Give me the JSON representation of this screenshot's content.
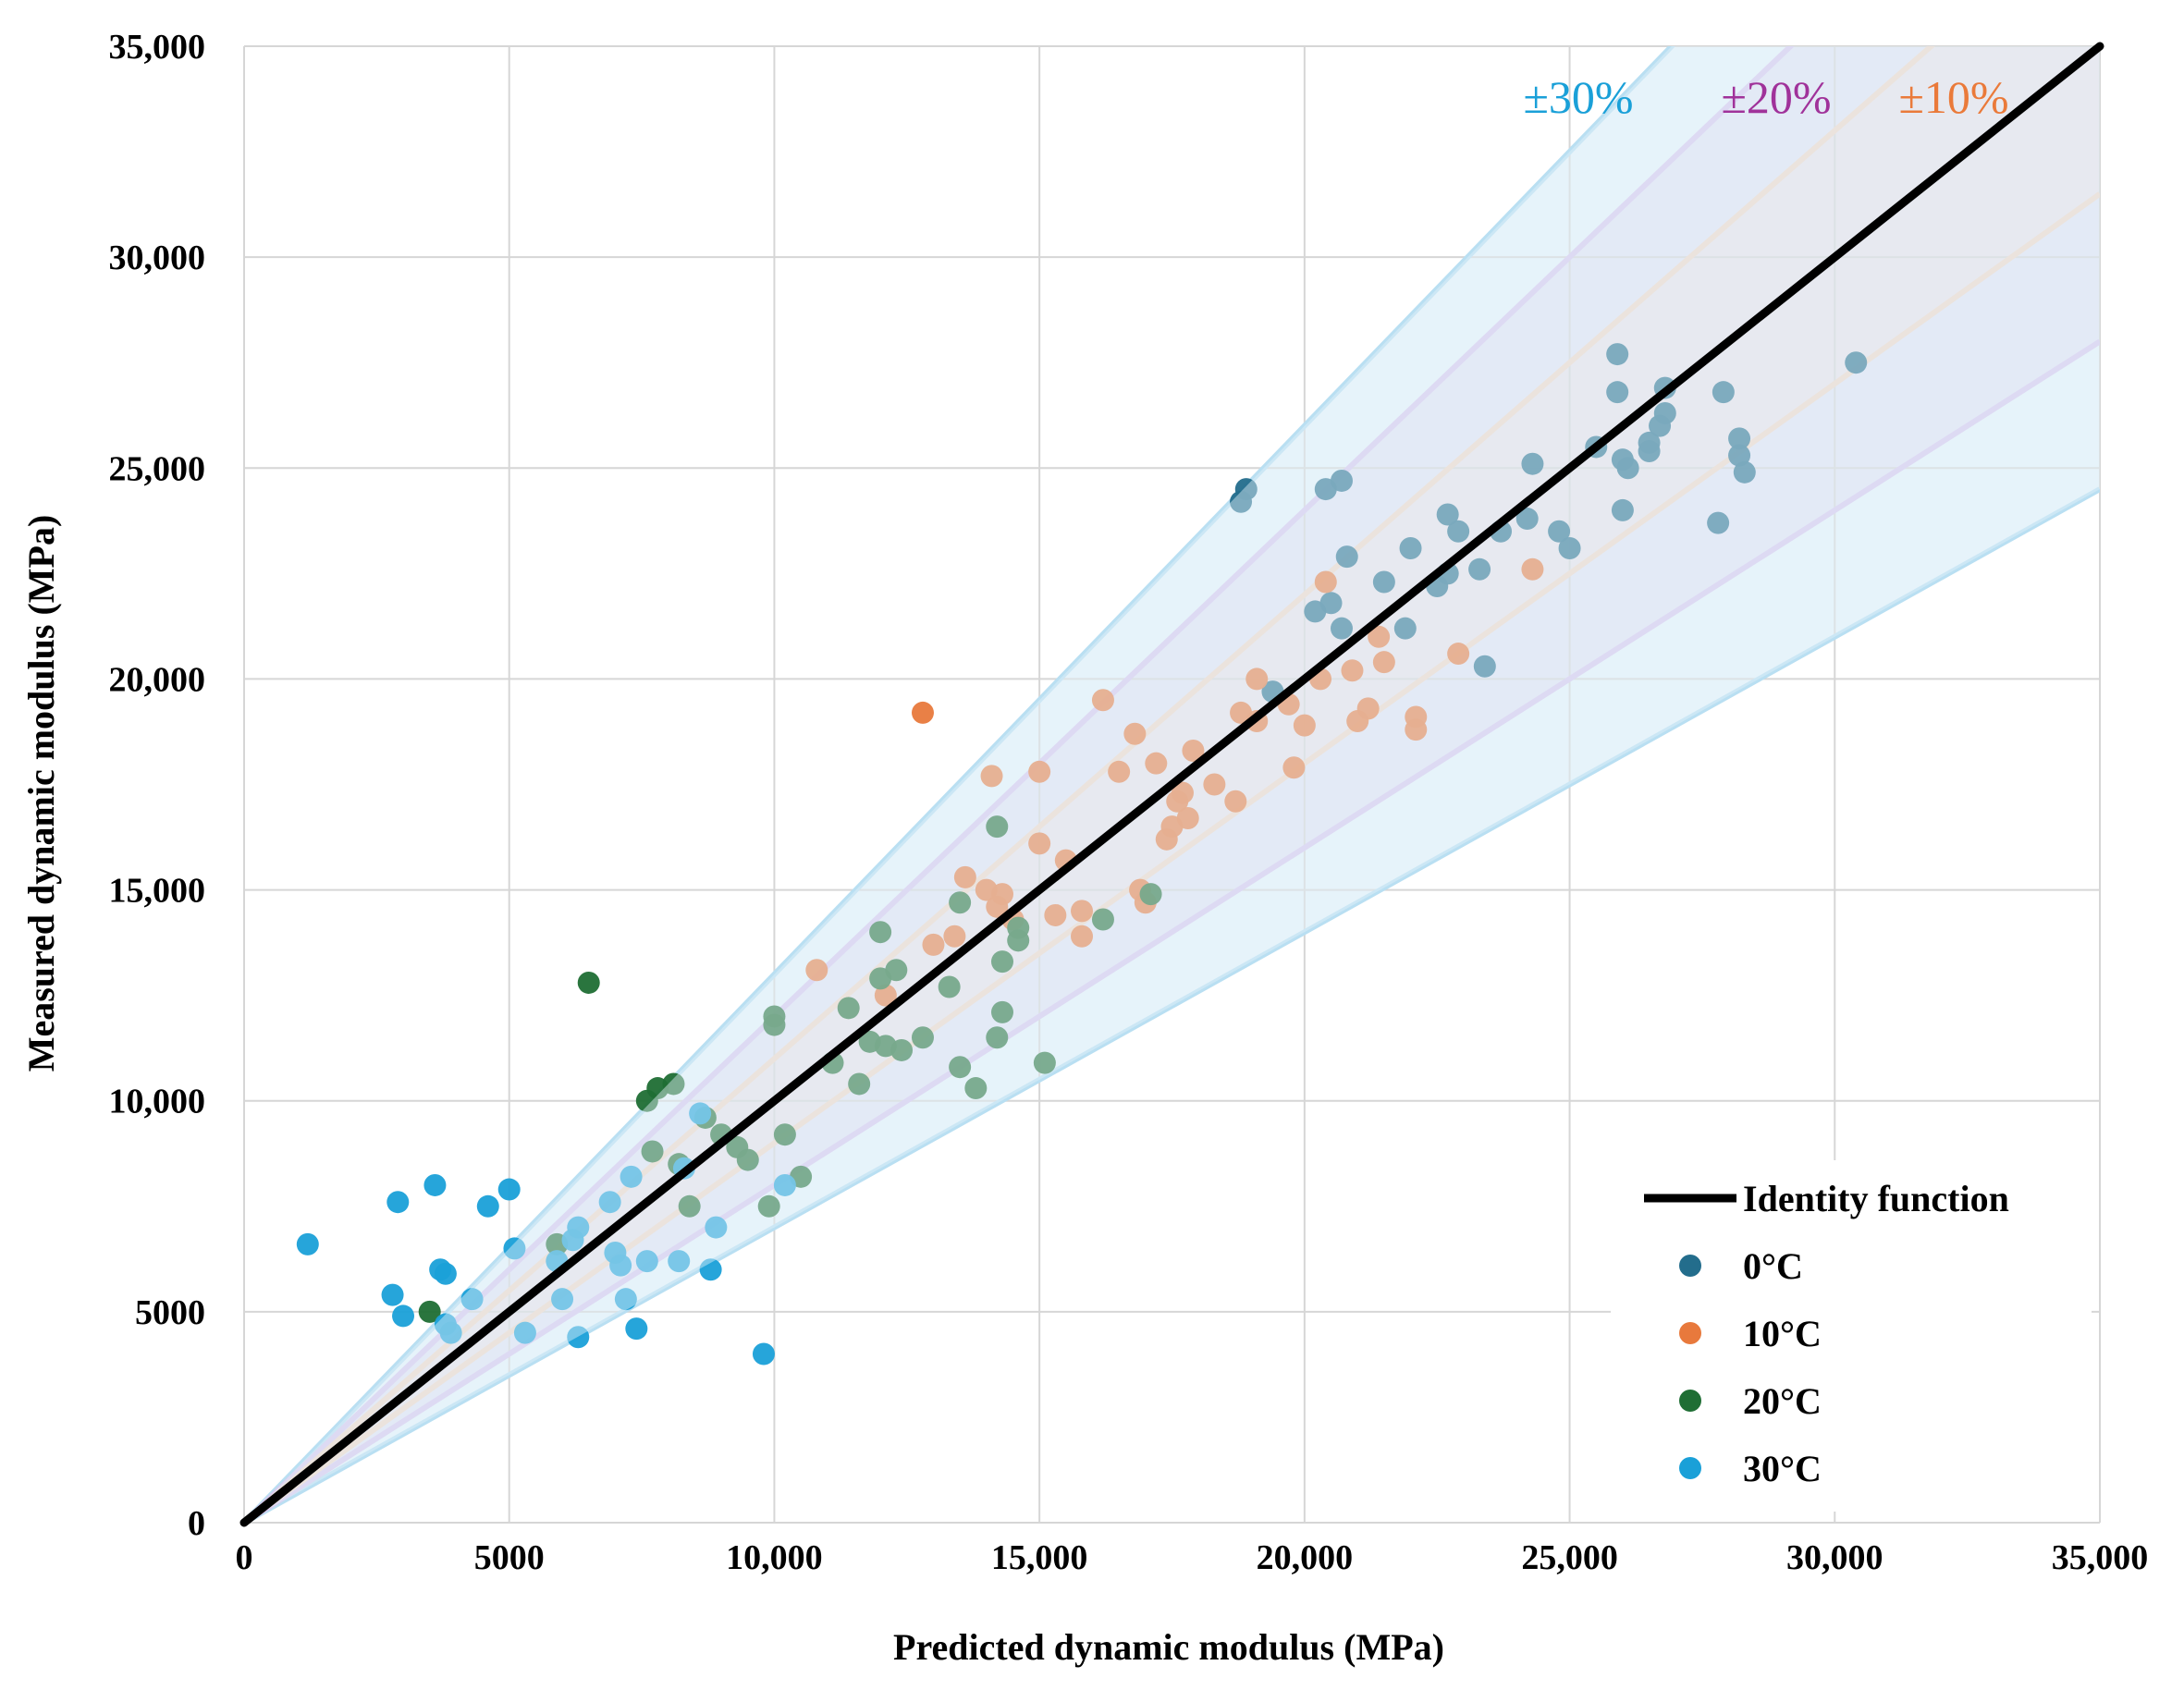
{
  "chart_data": {
    "type": "scatter",
    "xlabel": "Predicted dynamic modulus (MPa)",
    "ylabel": "Measured dynamic modulus (MPa)",
    "xlim": [
      0,
      35000
    ],
    "ylim": [
      0,
      35000
    ],
    "grid": true,
    "x_ticks": [
      {
        "value": 0,
        "label": "0"
      },
      {
        "value": 5000,
        "label": "5000"
      },
      {
        "value": 10000,
        "label": "10,000"
      },
      {
        "value": 15000,
        "label": "15,000"
      },
      {
        "value": 20000,
        "label": "20,000"
      },
      {
        "value": 25000,
        "label": "25,000"
      },
      {
        "value": 30000,
        "label": "30,000"
      },
      {
        "value": 35000,
        "label": "35,000"
      }
    ],
    "y_ticks": [
      {
        "value": 0,
        "label": "0"
      },
      {
        "value": 5000,
        "label": "5000"
      },
      {
        "value": 10000,
        "label": "10,000"
      },
      {
        "value": 15000,
        "label": "15,000"
      },
      {
        "value": 20000,
        "label": "20,000"
      },
      {
        "value": 25000,
        "label": "25,000"
      },
      {
        "value": 30000,
        "label": "30,000"
      },
      {
        "value": 35000,
        "label": "35,000"
      }
    ],
    "bands": [
      {
        "label": "±30%",
        "pct": 30,
        "line_color": "#b9dff2",
        "fill_color": "#d5edf8",
        "text_color": "#1aa0d8"
      },
      {
        "label": "±20%",
        "pct": 20,
        "line_color": "#d8c6ee",
        "fill_color": "#ddd4f0",
        "text_color": "#a0329a"
      },
      {
        "label": "±10%",
        "pct": 10,
        "line_color": "#f1d8c6",
        "fill_color": "#efe2de",
        "text_color": "#ea7a3a"
      }
    ],
    "identity": {
      "label": "Identity function",
      "color": "#000000"
    },
    "legend_position": "bottom-right",
    "series": [
      {
        "name": "0°C",
        "color": "#236d8c",
        "points": [
          [
            18800,
            24200
          ],
          [
            18900,
            24500
          ],
          [
            20400,
            24500
          ],
          [
            20700,
            24700
          ],
          [
            20800,
            22900
          ],
          [
            19400,
            19700
          ],
          [
            20200,
            21600
          ],
          [
            20500,
            21800
          ],
          [
            20700,
            21200
          ],
          [
            21500,
            22300
          ],
          [
            21900,
            21200
          ],
          [
            22000,
            23100
          ],
          [
            22500,
            22200
          ],
          [
            22700,
            23900
          ],
          [
            22900,
            23500
          ],
          [
            23300,
            22600
          ],
          [
            23400,
            20300
          ],
          [
            23700,
            23500
          ],
          [
            24200,
            23800
          ],
          [
            24300,
            25100
          ],
          [
            24800,
            23500
          ],
          [
            25000,
            23100
          ],
          [
            25500,
            25500
          ],
          [
            25900,
            27700
          ],
          [
            25900,
            26800
          ],
          [
            26000,
            25200
          ],
          [
            26000,
            24000
          ],
          [
            26100,
            25000
          ],
          [
            26500,
            25600
          ],
          [
            26500,
            25400
          ],
          [
            26700,
            26000
          ],
          [
            26800,
            26900
          ],
          [
            26800,
            26300
          ],
          [
            27800,
            23700
          ],
          [
            27900,
            26800
          ],
          [
            28200,
            25700
          ],
          [
            28200,
            25300
          ],
          [
            28300,
            24900
          ],
          [
            30400,
            27500
          ],
          [
            22700,
            22500
          ]
        ]
      },
      {
        "name": "10°C",
        "color": "#e8793c",
        "points": [
          [
            12800,
            19200
          ],
          [
            10800,
            13100
          ],
          [
            12100,
            12500
          ],
          [
            13000,
            13700
          ],
          [
            13400,
            13900
          ],
          [
            13600,
            15300
          ],
          [
            14000,
            15000
          ],
          [
            14100,
            17700
          ],
          [
            14200,
            14600
          ],
          [
            14300,
            14900
          ],
          [
            14500,
            14300
          ],
          [
            15000,
            17800
          ],
          [
            15000,
            16100
          ],
          [
            15300,
            14400
          ],
          [
            15500,
            15700
          ],
          [
            15800,
            14500
          ],
          [
            15800,
            13900
          ],
          [
            16200,
            19500
          ],
          [
            16500,
            17800
          ],
          [
            16800,
            18700
          ],
          [
            16900,
            15000
          ],
          [
            17000,
            14700
          ],
          [
            17200,
            18000
          ],
          [
            17400,
            16200
          ],
          [
            17500,
            16500
          ],
          [
            17600,
            17100
          ],
          [
            17700,
            17300
          ],
          [
            17800,
            16700
          ],
          [
            17900,
            18300
          ],
          [
            18300,
            17500
          ],
          [
            18700,
            17100
          ],
          [
            18800,
            19200
          ],
          [
            19100,
            20000
          ],
          [
            19100,
            19000
          ],
          [
            19700,
            19400
          ],
          [
            19800,
            17900
          ],
          [
            20000,
            18900
          ],
          [
            20300,
            20000
          ],
          [
            20400,
            22300
          ],
          [
            20900,
            20200
          ],
          [
            21000,
            19000
          ],
          [
            21200,
            19300
          ],
          [
            21400,
            21000
          ],
          [
            21500,
            20400
          ],
          [
            22100,
            19100
          ],
          [
            22100,
            18800
          ],
          [
            22900,
            20600
          ],
          [
            24300,
            22600
          ]
        ]
      },
      {
        "name": "20°C",
        "color": "#1f6e34",
        "points": [
          [
            3500,
            5000
          ],
          [
            5900,
            6600
          ],
          [
            6500,
            12800
          ],
          [
            7600,
            10000
          ],
          [
            7700,
            8800
          ],
          [
            7800,
            10300
          ],
          [
            8100,
            10400
          ],
          [
            8200,
            8500
          ],
          [
            8400,
            7500
          ],
          [
            8700,
            9600
          ],
          [
            9000,
            9200
          ],
          [
            9300,
            8900
          ],
          [
            9500,
            8600
          ],
          [
            9900,
            7500
          ],
          [
            10000,
            12000
          ],
          [
            10000,
            11800
          ],
          [
            10200,
            9200
          ],
          [
            10500,
            8200
          ],
          [
            11100,
            10900
          ],
          [
            11400,
            12200
          ],
          [
            11600,
            10400
          ],
          [
            11800,
            11400
          ],
          [
            12000,
            14000
          ],
          [
            12000,
            12900
          ],
          [
            12100,
            11300
          ],
          [
            12300,
            13100
          ],
          [
            12400,
            11200
          ],
          [
            12800,
            11500
          ],
          [
            13300,
            12700
          ],
          [
            13500,
            14700
          ],
          [
            13500,
            10800
          ],
          [
            13800,
            10300
          ],
          [
            14200,
            16500
          ],
          [
            14200,
            11500
          ],
          [
            14300,
            12100
          ],
          [
            14300,
            13300
          ],
          [
            14600,
            14100
          ],
          [
            14600,
            13800
          ],
          [
            15100,
            10900
          ],
          [
            16200,
            14300
          ],
          [
            17100,
            14900
          ]
        ]
      },
      {
        "name": "30°C",
        "color": "#1aa0d8",
        "points": [
          [
            1200,
            6600
          ],
          [
            2800,
            5400
          ],
          [
            2900,
            7600
          ],
          [
            3000,
            4900
          ],
          [
            3600,
            8000
          ],
          [
            3700,
            6000
          ],
          [
            3800,
            5900
          ],
          [
            3800,
            4700
          ],
          [
            3900,
            4500
          ],
          [
            4300,
            5300
          ],
          [
            4600,
            7500
          ],
          [
            5000,
            7900
          ],
          [
            5100,
            6500
          ],
          [
            5300,
            4500
          ],
          [
            5900,
            6200
          ],
          [
            6000,
            5300
          ],
          [
            6200,
            6700
          ],
          [
            6300,
            7000
          ],
          [
            6300,
            4400
          ],
          [
            6900,
            7600
          ],
          [
            7000,
            6400
          ],
          [
            7100,
            6100
          ],
          [
            7200,
            5300
          ],
          [
            7300,
            8200
          ],
          [
            7400,
            4600
          ],
          [
            7600,
            6200
          ],
          [
            8200,
            6200
          ],
          [
            8300,
            8400
          ],
          [
            8600,
            9700
          ],
          [
            8800,
            6000
          ],
          [
            8900,
            7000
          ],
          [
            9800,
            4000
          ],
          [
            10200,
            8000
          ]
        ]
      }
    ]
  }
}
